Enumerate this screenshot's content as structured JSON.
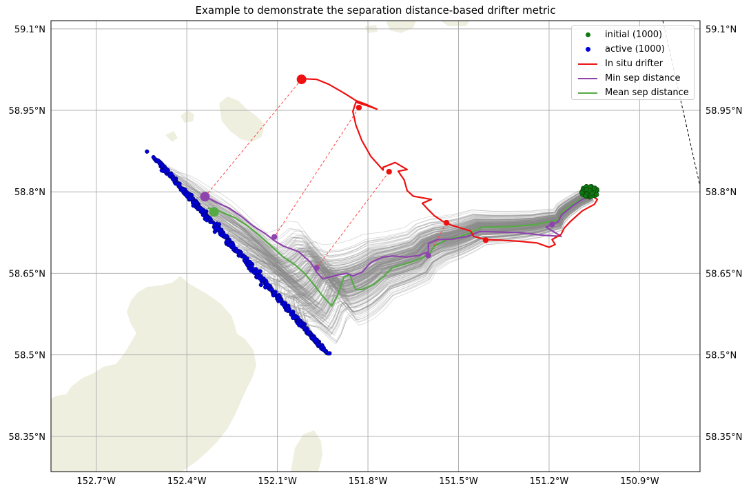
{
  "chart_data": {
    "type": "map",
    "title": "Example to demonstrate the separation distance-based drifter metric",
    "xlim": [
      -152.85,
      -150.7
    ],
    "ylim": [
      58.285,
      59.115
    ],
    "lon_ticks": [
      {
        "value": -152.7,
        "label": "152.7°W"
      },
      {
        "value": -152.4,
        "label": "152.4°W"
      },
      {
        "value": -152.1,
        "label": "152.1°W"
      },
      {
        "value": -151.8,
        "label": "151.8°W"
      },
      {
        "value": -151.5,
        "label": "151.5°W"
      },
      {
        "value": -151.2,
        "label": "151.2°W"
      },
      {
        "value": -150.9,
        "label": "150.9°W"
      }
    ],
    "lat_ticks": [
      {
        "value": 58.35,
        "label": "58.35°N"
      },
      {
        "value": 58.5,
        "label": "58.5°N"
      },
      {
        "value": 58.65,
        "label": "58.65°N"
      },
      {
        "value": 58.8,
        "label": "58.8°N"
      },
      {
        "value": 58.95,
        "label": "58.95°N"
      },
      {
        "value": 59.1,
        "label": "59.1°N"
      }
    ],
    "grid": true,
    "legend_position": "top-right",
    "legend": [
      {
        "label": "initial (1000)",
        "kind": "dot",
        "color": "#117711"
      },
      {
        "label": "active (1000)",
        "kind": "dot",
        "color": "#0000dd"
      },
      {
        "label": "In situ drifter",
        "kind": "line",
        "color": "#ee1111"
      },
      {
        "label": "Min sep distance",
        "kind": "line",
        "color": "#8e44ad"
      },
      {
        "label": "Mean sep distance",
        "kind": "line",
        "color": "#55aa44"
      }
    ],
    "colors": {
      "particle_tracks": "#888888",
      "land": "#efefe0",
      "separation_lines": "#ff4444"
    },
    "in_situ_drifter": [
      [
        -151.06,
        58.793
      ],
      [
        -151.04,
        58.786
      ],
      [
        -151.05,
        58.777
      ],
      [
        -151.09,
        58.765
      ],
      [
        -151.13,
        58.745
      ],
      [
        -151.15,
        58.733
      ],
      [
        -151.16,
        58.722
      ],
      [
        -151.19,
        58.712
      ],
      [
        -151.18,
        58.703
      ],
      [
        -151.2,
        58.698
      ],
      [
        -151.24,
        58.706
      ],
      [
        -151.3,
        58.709
      ],
      [
        -151.36,
        58.711
      ],
      [
        -151.41,
        58.712
      ],
      [
        -151.45,
        58.718
      ],
      [
        -151.46,
        58.728
      ],
      [
        -151.49,
        58.733
      ],
      [
        -151.52,
        58.738
      ],
      [
        -151.55,
        58.745
      ],
      [
        -151.58,
        58.756
      ],
      [
        -151.6,
        58.767
      ],
      [
        -151.62,
        58.779
      ],
      [
        -151.59,
        58.786
      ],
      [
        -151.65,
        58.792
      ],
      [
        -151.67,
        58.802
      ],
      [
        -151.68,
        58.822
      ],
      [
        -151.7,
        58.838
      ],
      [
        -151.67,
        58.841
      ],
      [
        -151.71,
        58.854
      ],
      [
        -151.75,
        58.845
      ],
      [
        -151.75,
        58.84
      ],
      [
        -151.79,
        58.865
      ],
      [
        -151.82,
        58.894
      ],
      [
        -151.84,
        58.923
      ],
      [
        -151.85,
        58.948
      ],
      [
        -151.84,
        58.965
      ],
      [
        -151.8,
        58.958
      ],
      [
        -151.77,
        58.952
      ],
      [
        -151.81,
        58.962
      ],
      [
        -151.84,
        58.968
      ],
      [
        -151.88,
        58.982
      ],
      [
        -151.93,
        58.998
      ],
      [
        -151.97,
        59.007
      ],
      [
        -152.01,
        59.008
      ],
      [
        -152.02,
        59.005
      ]
    ],
    "min_sep_distance": [
      [
        -151.06,
        58.795
      ],
      [
        -151.08,
        58.79
      ],
      [
        -151.12,
        58.775
      ],
      [
        -151.16,
        58.757
      ],
      [
        -151.17,
        58.745
      ],
      [
        -151.21,
        58.735
      ],
      [
        -151.18,
        58.725
      ],
      [
        -151.16,
        58.718
      ],
      [
        -151.22,
        58.72
      ],
      [
        -151.3,
        58.725
      ],
      [
        -151.37,
        58.726
      ],
      [
        -151.43,
        58.727
      ],
      [
        -151.47,
        58.718
      ],
      [
        -151.52,
        58.713
      ],
      [
        -151.57,
        58.712
      ],
      [
        -151.6,
        58.705
      ],
      [
        -151.6,
        58.69
      ],
      [
        -151.63,
        58.683
      ],
      [
        -151.67,
        58.68
      ],
      [
        -151.72,
        58.682
      ],
      [
        -151.75,
        58.68
      ],
      [
        -151.79,
        58.67
      ],
      [
        -151.82,
        58.652
      ],
      [
        -151.85,
        58.645
      ],
      [
        -151.87,
        58.65
      ],
      [
        -151.9,
        58.647
      ],
      [
        -151.95,
        58.64
      ],
      [
        -151.97,
        58.652
      ],
      [
        -151.99,
        58.67
      ],
      [
        -152.03,
        58.69
      ],
      [
        -152.08,
        58.7
      ],
      [
        -152.11,
        58.71
      ],
      [
        -152.14,
        58.723
      ],
      [
        -152.18,
        58.737
      ],
      [
        -152.22,
        58.755
      ],
      [
        -152.26,
        58.77
      ],
      [
        -152.3,
        58.78
      ],
      [
        -152.34,
        58.792
      ],
      [
        -152.35,
        58.792
      ]
    ],
    "mean_sep_distance": [
      [
        -151.06,
        58.795
      ],
      [
        -151.1,
        58.785
      ],
      [
        -151.14,
        58.77
      ],
      [
        -151.16,
        58.76
      ],
      [
        -151.17,
        58.748
      ],
      [
        -151.2,
        58.745
      ],
      [
        -151.24,
        58.74
      ],
      [
        -151.3,
        58.737
      ],
      [
        -151.36,
        58.735
      ],
      [
        -151.42,
        58.735
      ],
      [
        -151.46,
        58.725
      ],
      [
        -151.5,
        58.717
      ],
      [
        -151.54,
        58.712
      ],
      [
        -151.58,
        58.7
      ],
      [
        -151.6,
        58.683
      ],
      [
        -151.66,
        58.67
      ],
      [
        -151.72,
        58.66
      ],
      [
        -151.75,
        58.643
      ],
      [
        -151.78,
        58.63
      ],
      [
        -151.82,
        58.62
      ],
      [
        -151.84,
        58.62
      ],
      [
        -151.85,
        58.632
      ],
      [
        -151.86,
        58.648
      ],
      [
        -151.88,
        58.643
      ],
      [
        -151.9,
        58.61
      ],
      [
        -151.92,
        58.59
      ],
      [
        -151.95,
        58.608
      ],
      [
        -151.98,
        58.63
      ],
      [
        -152.01,
        58.65
      ],
      [
        -152.04,
        58.665
      ],
      [
        -152.08,
        58.68
      ],
      [
        -152.12,
        58.7
      ],
      [
        -152.16,
        58.72
      ],
      [
        -152.2,
        58.738
      ],
      [
        -152.24,
        58.752
      ],
      [
        -152.29,
        58.764
      ],
      [
        -152.33,
        58.77
      ]
    ],
    "in_situ_markers": [
      {
        "lon": -152.02,
        "lat": 59.007,
        "size": "large"
      },
      {
        "lon": -151.83,
        "lat": 58.955,
        "size": "small"
      },
      {
        "lon": -151.73,
        "lat": 58.837,
        "size": "small"
      },
      {
        "lon": -151.54,
        "lat": 58.743,
        "size": "small"
      },
      {
        "lon": -151.41,
        "lat": 58.711,
        "size": "small"
      }
    ],
    "min_sep_markers": [
      {
        "lon": -152.34,
        "lat": 58.791,
        "size": "large"
      },
      {
        "lon": -152.11,
        "lat": 58.717,
        "size": "small"
      },
      {
        "lon": -151.97,
        "lat": 58.66,
        "size": "small"
      },
      {
        "lon": -151.6,
        "lat": 58.683,
        "size": "small"
      },
      {
        "lon": -151.19,
        "lat": 58.74,
        "size": "small"
      }
    ],
    "mean_sep_markers": [
      {
        "lon": -152.31,
        "lat": 58.763,
        "size": "large"
      }
    ],
    "separation_links": [
      {
        "from": [
          -152.02,
          59.007
        ],
        "to": [
          -152.34,
          58.791
        ]
      },
      {
        "from": [
          -151.83,
          58.955
        ],
        "to": [
          -152.11,
          58.717
        ]
      },
      {
        "from": [
          -151.73,
          58.837
        ],
        "to": [
          -151.97,
          58.66
        ]
      },
      {
        "from": [
          -151.54,
          58.743
        ],
        "to": [
          -151.6,
          58.683
        ]
      }
    ],
    "initial_cluster_center": [
      -151.065,
      58.8
    ],
    "active_cluster_axis": [
      [
        -152.5,
        58.86
      ],
      [
        -151.94,
        58.505
      ]
    ]
  }
}
